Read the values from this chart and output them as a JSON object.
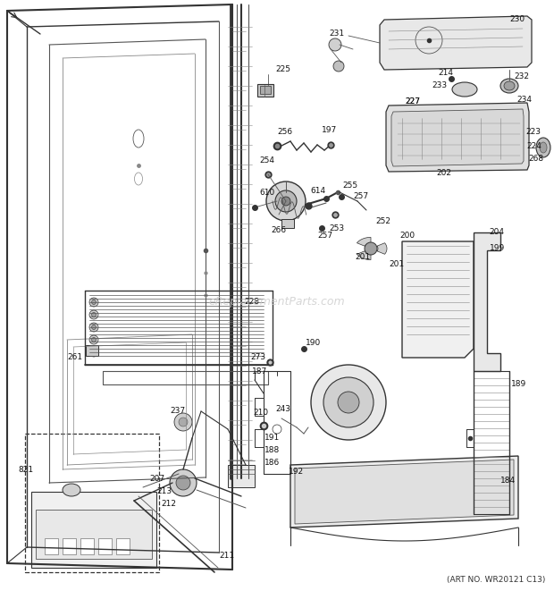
{
  "background_color": "#ffffff",
  "watermark": "eReplacementParts.com",
  "art_no": "(ART NO. WR20121 C13)",
  "fig_width": 6.2,
  "fig_height": 6.61,
  "dpi": 100
}
